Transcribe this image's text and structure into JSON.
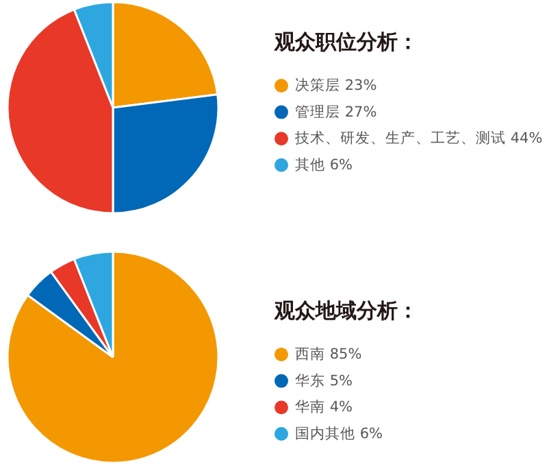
{
  "chart_data": [
    {
      "type": "pie",
      "title": "观众职位分析：",
      "categories": [
        "决策层 23%",
        "管理层 27%",
        "技术、研发、生产、工艺、测试 44%",
        "其他 6%"
      ],
      "values": [
        23,
        27,
        44,
        6
      ],
      "colors": [
        "#f39800",
        "#0068b7",
        "#e83828",
        "#2ea7e0"
      ],
      "legend": "right"
    },
    {
      "type": "pie",
      "title": "观众地域分析：",
      "categories": [
        "西南 85%",
        "华东 5%",
        "华南 4%",
        "国内其他 6%"
      ],
      "values": [
        85,
        5,
        4,
        6
      ],
      "colors": [
        "#f39800",
        "#0068b7",
        "#e83828",
        "#2ea7e0"
      ],
      "legend": "right"
    }
  ]
}
